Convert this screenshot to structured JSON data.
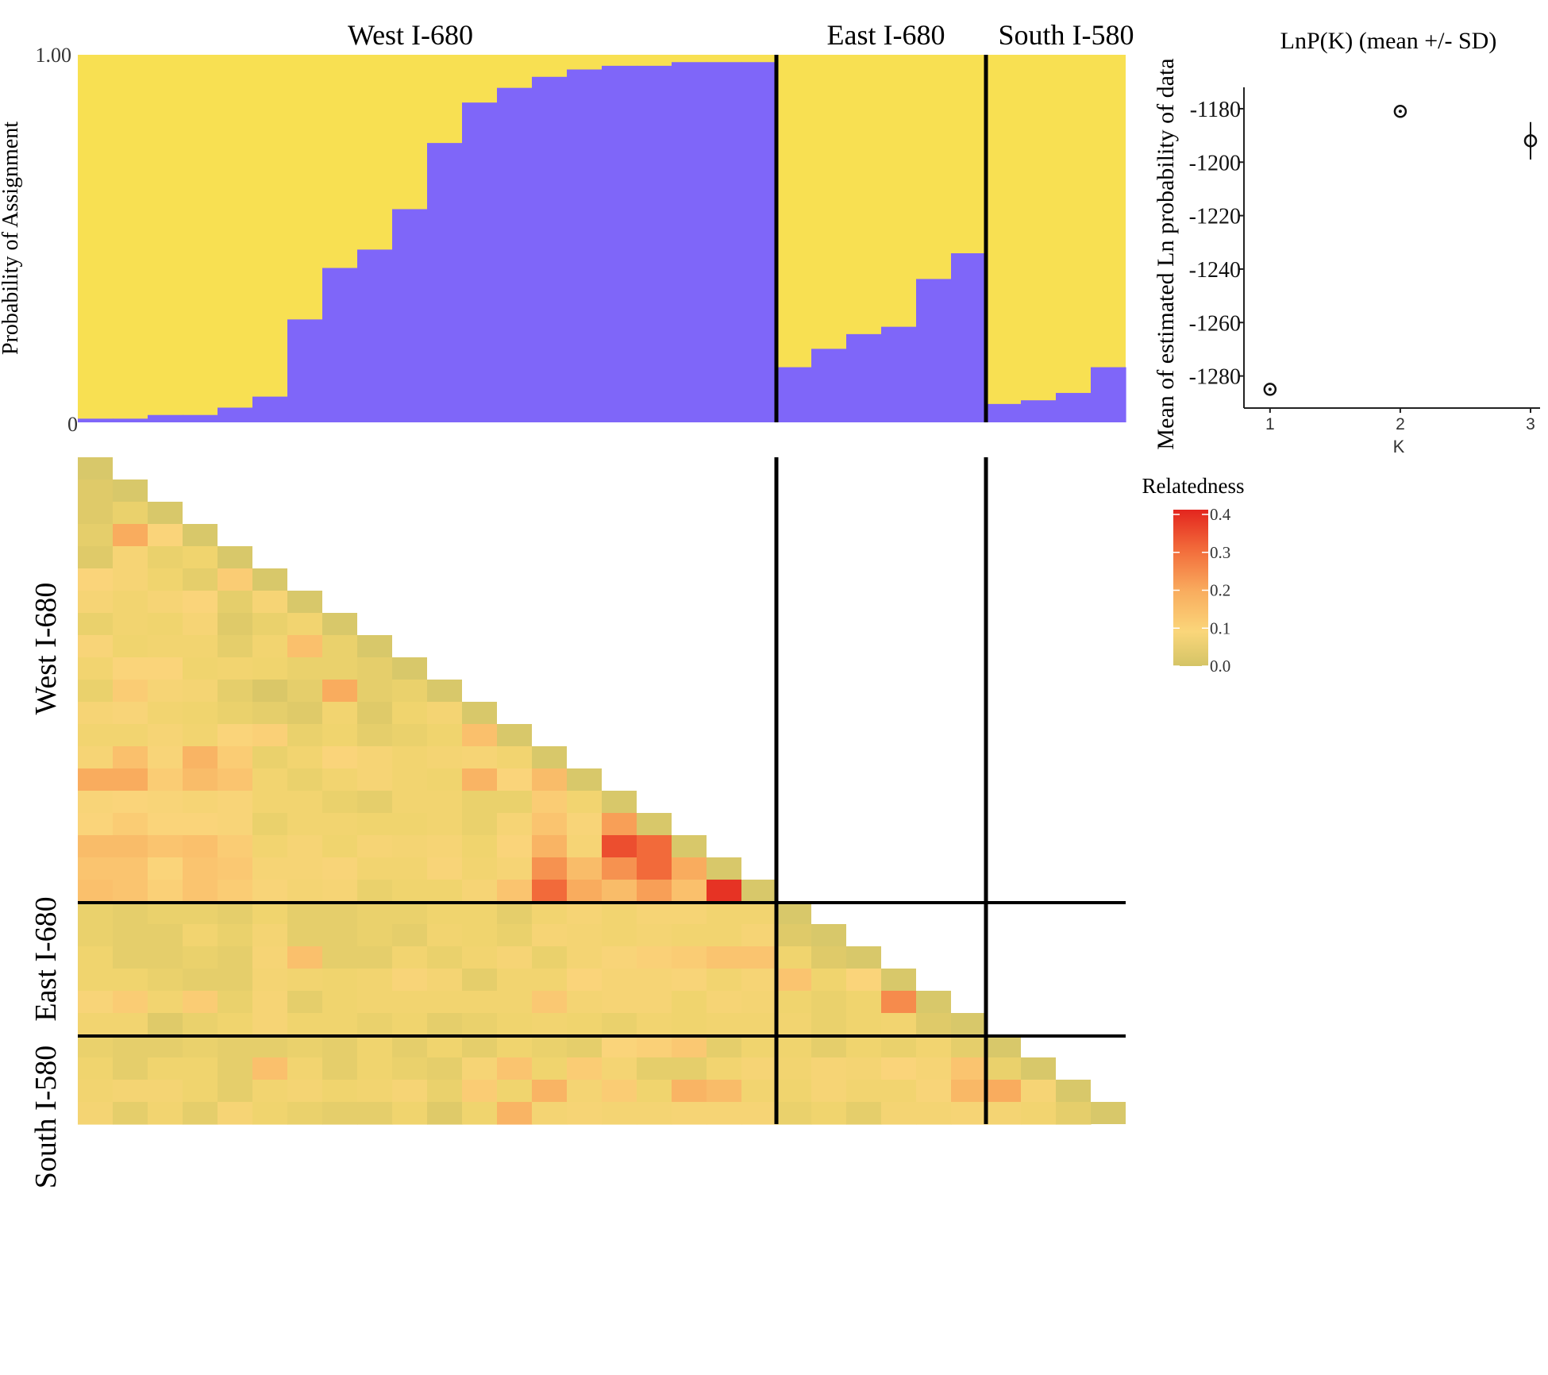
{
  "figure": {
    "groups": [
      "West I-680",
      "East I-680",
      "South I-580"
    ],
    "colors": {
      "cluster1": "#F8E052",
      "cluster2": "#7F66F9",
      "divider": "#000000"
    }
  },
  "chart_data": [
    {
      "type": "bar",
      "title": "",
      "ylabel": "Probability of Assignment",
      "ylim": [
        0,
        1
      ],
      "ytick_labels": [
        "0",
        "1.00"
      ],
      "group_labels": [
        "West I-680",
        "East I-680",
        "South I-580"
      ],
      "group_sizes": [
        20,
        6,
        4
      ],
      "series": [
        {
          "values": [
            0.01,
            0.01,
            0.02,
            0.02,
            0.04,
            0.07,
            0.28,
            0.42,
            0.47,
            0.58,
            0.76,
            0.87,
            0.91,
            0.94,
            0.96,
            0.97,
            0.97,
            0.98,
            0.98,
            0.98,
            0.15,
            0.2,
            0.24,
            0.26,
            0.39,
            0.46,
            0.05,
            0.06,
            0.08,
            0.15
          ]
        },
        {
          "values": [
            0.99,
            0.99,
            0.98,
            0.98,
            0.96,
            0.93,
            0.72,
            0.58,
            0.53,
            0.42,
            0.24,
            0.13,
            0.09,
            0.06,
            0.04,
            0.03,
            0.03,
            0.02,
            0.02,
            0.02,
            0.85,
            0.8,
            0.76,
            0.74,
            0.61,
            0.54,
            0.95,
            0.94,
            0.92,
            0.85
          ]
        }
      ]
    },
    {
      "type": "scatter",
      "title": "LnP(K) (mean +/- SD)",
      "xlabel": "K",
      "ylabel": "Mean of estimated Ln probability of data",
      "xlim": [
        0.8,
        3
      ],
      "ylim": [
        -1292,
        -1172
      ],
      "xticks": [
        1,
        2,
        3
      ],
      "yticks": [
        -1280,
        -1260,
        -1240,
        -1220,
        -1200,
        -1180
      ],
      "points": [
        {
          "x": 1,
          "y": -1285,
          "sd": 0.5
        },
        {
          "x": 2,
          "y": -1181,
          "sd": 0.5
        },
        {
          "x": 3,
          "y": -1192,
          "sd": 7
        }
      ]
    },
    {
      "type": "heatmap",
      "title": "",
      "legend_title": "Relatedness",
      "colorbar_ticks": [
        "0.4",
        "0.3",
        "0.2",
        "0.1",
        "0.0"
      ],
      "range": [
        0,
        0.4
      ],
      "row_labels": [
        "West I-680",
        "East I-680",
        "South I-580"
      ],
      "group_sizes": [
        20,
        6,
        4
      ],
      "lower_triangle": [
        [],
        [
          0.02
        ],
        [
          0.02,
          0.04
        ],
        [
          0.03,
          0.2,
          0.1
        ],
        [
          0.02,
          0.08,
          0.04,
          0.05
        ],
        [
          0.1,
          0.08,
          0.05,
          0.03,
          0.12
        ],
        [
          0.08,
          0.06,
          0.08,
          0.1,
          0.03,
          0.08
        ],
        [
          0.04,
          0.06,
          0.05,
          0.08,
          0.02,
          0.04,
          0.06
        ],
        [
          0.09,
          0.05,
          0.06,
          0.06,
          0.03,
          0.06,
          0.15,
          0.04
        ],
        [
          0.06,
          0.1,
          0.1,
          0.05,
          0.06,
          0.05,
          0.04,
          0.04,
          0.03
        ],
        [
          0.04,
          0.12,
          0.08,
          0.07,
          0.03,
          0.01,
          0.03,
          0.2,
          0.03,
          0.04
        ],
        [
          0.08,
          0.09,
          0.06,
          0.05,
          0.04,
          0.03,
          0.02,
          0.06,
          0.02,
          0.05,
          0.07
        ],
        [
          0.06,
          0.06,
          0.08,
          0.06,
          0.1,
          0.11,
          0.04,
          0.05,
          0.03,
          0.04,
          0.05,
          0.15
        ],
        [
          0.08,
          0.15,
          0.09,
          0.18,
          0.12,
          0.04,
          0.06,
          0.1,
          0.08,
          0.06,
          0.07,
          0.08,
          0.06
        ],
        [
          0.2,
          0.2,
          0.12,
          0.16,
          0.14,
          0.06,
          0.04,
          0.06,
          0.08,
          0.06,
          0.05,
          0.18,
          0.1,
          0.16
        ],
        [
          0.09,
          0.1,
          0.09,
          0.08,
          0.09,
          0.06,
          0.06,
          0.04,
          0.03,
          0.06,
          0.06,
          0.04,
          0.04,
          0.12,
          0.06
        ],
        [
          0.1,
          0.12,
          0.1,
          0.1,
          0.09,
          0.04,
          0.06,
          0.06,
          0.05,
          0.05,
          0.06,
          0.04,
          0.08,
          0.14,
          0.09,
          0.22
        ],
        [
          0.16,
          0.16,
          0.14,
          0.15,
          0.12,
          0.06,
          0.08,
          0.05,
          0.08,
          0.07,
          0.08,
          0.05,
          0.1,
          0.18,
          0.08,
          0.34,
          0.3
        ],
        [
          0.14,
          0.14,
          0.1,
          0.14,
          0.13,
          0.08,
          0.08,
          0.09,
          0.06,
          0.06,
          0.09,
          0.06,
          0.08,
          0.24,
          0.16,
          0.24,
          0.3,
          0.2
        ],
        [
          0.15,
          0.14,
          0.11,
          0.14,
          0.12,
          0.09,
          0.07,
          0.08,
          0.04,
          0.05,
          0.05,
          0.08,
          0.14,
          0.3,
          0.2,
          0.16,
          0.22,
          0.15,
          0.38
        ],
        [
          0.04,
          0.03,
          0.04,
          0.04,
          0.03,
          0.05,
          0.03,
          0.03,
          0.04,
          0.04,
          0.05,
          0.05,
          0.03,
          0.06,
          0.08,
          0.06,
          0.08,
          0.08,
          0.06,
          0.06
        ],
        [
          0.04,
          0.03,
          0.03,
          0.06,
          0.04,
          0.07,
          0.03,
          0.03,
          0.04,
          0.03,
          0.06,
          0.05,
          0.04,
          0.08,
          0.07,
          0.06,
          0.07,
          0.06,
          0.06,
          0.08,
          0.02
        ],
        [
          0.05,
          0.03,
          0.03,
          0.04,
          0.03,
          0.08,
          0.15,
          0.03,
          0.03,
          0.06,
          0.04,
          0.06,
          0.08,
          0.04,
          0.07,
          0.09,
          0.11,
          0.12,
          0.14,
          0.14,
          0.05,
          0.02
        ],
        [
          0.05,
          0.05,
          0.04,
          0.03,
          0.03,
          0.07,
          0.06,
          0.05,
          0.06,
          0.09,
          0.07,
          0.03,
          0.06,
          0.06,
          0.1,
          0.08,
          0.08,
          0.09,
          0.06,
          0.08,
          0.14,
          0.05,
          0.1
        ],
        [
          0.09,
          0.12,
          0.06,
          0.12,
          0.04,
          0.08,
          0.03,
          0.05,
          0.06,
          0.06,
          0.06,
          0.06,
          0.06,
          0.13,
          0.07,
          0.08,
          0.08,
          0.05,
          0.08,
          0.07,
          0.05,
          0.04,
          0.05,
          0.25
        ],
        [
          0.06,
          0.06,
          0.02,
          0.04,
          0.05,
          0.08,
          0.05,
          0.05,
          0.04,
          0.05,
          0.03,
          0.04,
          0.05,
          0.06,
          0.05,
          0.04,
          0.06,
          0.05,
          0.06,
          0.06,
          0.06,
          0.04,
          0.05,
          0.06,
          0.02
        ],
        [
          0.04,
          0.03,
          0.03,
          0.04,
          0.03,
          0.03,
          0.04,
          0.03,
          0.05,
          0.03,
          0.05,
          0.03,
          0.05,
          0.04,
          0.03,
          0.1,
          0.11,
          0.13,
          0.03,
          0.05,
          0.05,
          0.03,
          0.05,
          0.04,
          0.06,
          0.03
        ],
        [
          0.05,
          0.03,
          0.05,
          0.05,
          0.03,
          0.15,
          0.06,
          0.03,
          0.05,
          0.04,
          0.03,
          0.08,
          0.14,
          0.05,
          0.12,
          0.07,
          0.03,
          0.03,
          0.06,
          0.08,
          0.06,
          0.08,
          0.07,
          0.1,
          0.08,
          0.14,
          0.04
        ],
        [
          0.06,
          0.07,
          0.07,
          0.05,
          0.03,
          0.06,
          0.07,
          0.05,
          0.06,
          0.08,
          0.04,
          0.12,
          0.05,
          0.18,
          0.07,
          0.12,
          0.05,
          0.18,
          0.16,
          0.06,
          0.05,
          0.08,
          0.06,
          0.06,
          0.09,
          0.17,
          0.2,
          0.08
        ],
        [
          0.07,
          0.03,
          0.06,
          0.03,
          0.08,
          0.05,
          0.04,
          0.03,
          0.03,
          0.05,
          0.02,
          0.05,
          0.18,
          0.07,
          0.08,
          0.07,
          0.07,
          0.08,
          0.08,
          0.08,
          0.04,
          0.05,
          0.03,
          0.07,
          0.07,
          0.08,
          0.07,
          0.06,
          0.03
        ]
      ]
    }
  ]
}
